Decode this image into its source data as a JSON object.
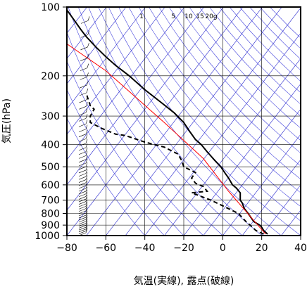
{
  "chart_data": {
    "type": "line",
    "title": "",
    "xlabel": "気温(実線), 露点(破線)",
    "ylabel": "気圧(hPa)",
    "xlim": [
      -80,
      40
    ],
    "ylim": [
      1000,
      100
    ],
    "y_scale": "log",
    "x_ticks": [
      "−80",
      "−60",
      "−40",
      "−20",
      "0",
      "20",
      "40"
    ],
    "y_ticks": [
      "100",
      "200",
      "300",
      "400",
      "500",
      "600",
      "700",
      "800",
      "900",
      "1000"
    ],
    "mixing_ratio_labels": [
      "1",
      "5",
      "10",
      "15",
      "20g"
    ],
    "grid": true,
    "colors": {
      "isotherm": "#2222cc",
      "adiabat": "#4444dd",
      "reference": "#ff0000",
      "sounding": "#000000"
    },
    "series": [
      {
        "style": "solid",
        "points": [
          [
            23,
            985
          ],
          [
            21,
            950
          ],
          [
            20,
            920
          ],
          [
            19,
            900
          ],
          [
            16,
            870
          ],
          [
            13,
            800
          ],
          [
            11,
            760
          ],
          [
            10,
            720
          ],
          [
            9,
            700
          ],
          [
            9,
            680
          ],
          [
            9,
            650
          ],
          [
            7,
            620
          ],
          [
            5,
            600
          ],
          [
            3,
            560
          ],
          [
            1,
            530
          ],
          [
            -1,
            500
          ],
          [
            -4,
            470
          ],
          [
            -8,
            430
          ],
          [
            -11,
            400
          ],
          [
            -14,
            380
          ],
          [
            -17,
            350
          ],
          [
            -20,
            320
          ],
          [
            -25,
            290
          ],
          [
            -32,
            260
          ],
          [
            -40,
            230
          ],
          [
            -48,
            200
          ],
          [
            -55,
            180
          ],
          [
            -60,
            165
          ],
          [
            -65,
            150
          ],
          [
            -70,
            135
          ],
          [
            -73,
            125
          ],
          [
            -76,
            115
          ],
          [
            -80,
            103
          ]
        ]
      },
      {
        "style": "dashed",
        "points": [
          [
            21,
            985
          ],
          [
            17,
            950
          ],
          [
            14,
            900
          ],
          [
            12,
            870
          ],
          [
            8,
            800
          ],
          [
            -6,
            700
          ],
          [
            -16,
            650
          ],
          [
            -8,
            640
          ],
          [
            -10,
            610
          ],
          [
            -12,
            600
          ],
          [
            -14,
            590
          ],
          [
            -16,
            560
          ],
          [
            -14,
            530
          ],
          [
            -20,
            500
          ],
          [
            -21,
            470
          ],
          [
            -23,
            440
          ],
          [
            -30,
            410
          ],
          [
            -40,
            390
          ],
          [
            -50,
            365
          ],
          [
            -55,
            360
          ],
          [
            -62,
            340
          ],
          [
            -68,
            320
          ],
          [
            -68,
            300
          ],
          [
            -66,
            280
          ],
          [
            -68,
            270
          ],
          [
            -70,
            240
          ]
        ]
      },
      {
        "style": "reference",
        "points": [
          [
            22,
            985
          ],
          [
            3,
            640
          ],
          [
            -10,
            460
          ],
          [
            -30,
            320
          ],
          [
            -60,
            190
          ],
          [
            -80,
            145
          ]
        ]
      }
    ]
  }
}
